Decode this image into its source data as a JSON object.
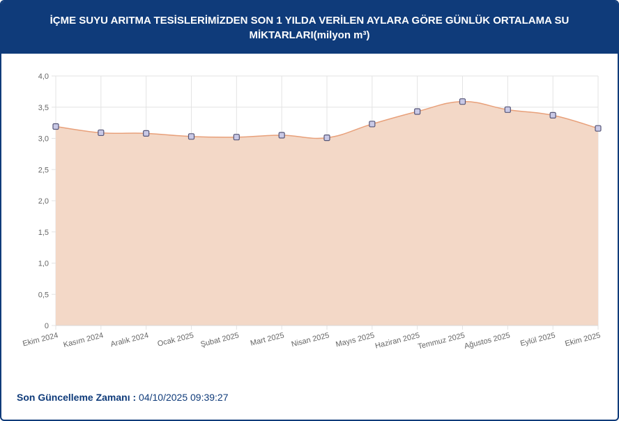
{
  "header": {
    "title_line1": "İÇME SUYU ARITMA TESİSLERİMİZDEN SON 1 YILDA VERİLEN AYLARA GÖRE GÜNLÜK ORTALAMA SU",
    "title_line2": "MİKTARLARI(milyon m³)"
  },
  "chart_data": {
    "type": "area",
    "categories": [
      "Ekim 2024",
      "Kasım 2024",
      "Aralık 2024",
      "Ocak 2025",
      "Şubat 2025",
      "Mart 2025",
      "Nisan 2025",
      "Mayıs 2025",
      "Haziran 2025",
      "Temmuz 2025",
      "Ağustos 2025",
      "Eylül 2025",
      "Ekim 2025"
    ],
    "values": [
      3.19,
      3.09,
      3.08,
      3.03,
      3.02,
      3.05,
      3.01,
      3.23,
      3.43,
      3.59,
      3.46,
      3.37,
      3.16
    ],
    "yticks": [
      "0",
      "0,5",
      "1,0",
      "1,5",
      "2,0",
      "2,5",
      "3,0",
      "3,5",
      "4,0"
    ],
    "ylim": [
      0,
      4
    ],
    "grid": true,
    "colors": {
      "fill": "#f3d8c7",
      "line": "#e8a07a",
      "point": "#c9c9e6",
      "point_border": "#555577",
      "grid": "#e3e3e3"
    }
  },
  "footer": {
    "label": "Son Güncelleme Zamanı :",
    "value": "04/10/2025 09:39:27"
  }
}
